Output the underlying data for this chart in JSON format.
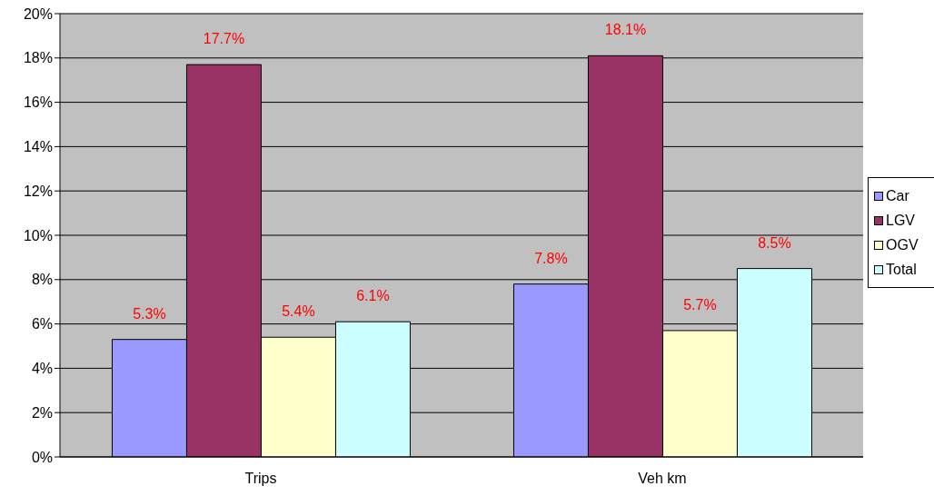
{
  "chart_data": {
    "type": "bar",
    "categories": [
      "Trips",
      "Veh km"
    ],
    "series": [
      {
        "name": "Car",
        "color": "#9999ff",
        "values": [
          5.3,
          7.8
        ],
        "value_labels": [
          "5.3%",
          "7.8%"
        ]
      },
      {
        "name": "LGV",
        "color": "#993366",
        "values": [
          17.7,
          18.1
        ],
        "value_labels": [
          "17.7%",
          "18.1%"
        ]
      },
      {
        "name": "OGV",
        "color": "#ffffcc",
        "values": [
          5.4,
          5.7
        ],
        "value_labels": [
          "5.4%",
          "5.7%"
        ]
      },
      {
        "name": "Total",
        "color": "#ccffff",
        "values": [
          6.1,
          8.5
        ],
        "value_labels": [
          "6.1%",
          "8.5%"
        ]
      }
    ],
    "ylim": [
      0,
      20
    ],
    "yticks": [
      {
        "value": 0,
        "label": "0%"
      },
      {
        "value": 2,
        "label": "2%"
      },
      {
        "value": 4,
        "label": "4%"
      },
      {
        "value": 6,
        "label": "6%"
      },
      {
        "value": 8,
        "label": "8%"
      },
      {
        "value": 10,
        "label": "10%"
      },
      {
        "value": 12,
        "label": "12%"
      },
      {
        "value": 14,
        "label": "14%"
      },
      {
        "value": 16,
        "label": "16%"
      },
      {
        "value": 18,
        "label": "18%"
      },
      {
        "value": 20,
        "label": "20%"
      }
    ],
    "grid": "y",
    "legend": "right"
  }
}
